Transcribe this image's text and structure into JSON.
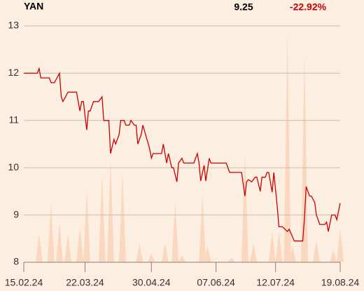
{
  "header": {
    "symbol": "YAN",
    "price": 9.25,
    "change": "-22.92%"
  },
  "chart_data": {
    "type": "line",
    "x": [
      "15.02.24",
      "23.02.24",
      "24.02.24",
      "25.02.24",
      "01.03.24",
      "02.03.24",
      "04.03.24",
      "07.03.24",
      "08.03.24",
      "09.03.24",
      "12.03.24",
      "17.03.24",
      "19.03.24",
      "20.03.24",
      "21.03.24",
      "23.03.24",
      "24.03.24",
      "25.03.24",
      "27.03.24",
      "30.03.24",
      "01.04.24",
      "02.04.24",
      "05.04.24",
      "06.04.24",
      "08.04.24",
      "09.04.24",
      "11.04.24",
      "12.04.24",
      "14.04.24",
      "15.04.24",
      "17.04.24",
      "18.04.24",
      "20.04.24",
      "21.04.24",
      "22.04.24",
      "24.04.24",
      "25.04.24",
      "27.04.24",
      "29.04.24",
      "30.04.24",
      "01.05.24",
      "06.05.24",
      "07.05.24",
      "09.05.24",
      "10.05.24",
      "12.05.24",
      "13.05.24",
      "15.05.24",
      "16.05.24",
      "18.05.24",
      "19.05.24",
      "25.05.24",
      "27.05.24",
      "28.05.24",
      "29.05.24",
      "31.05.24",
      "01.06.24",
      "03.06.24",
      "04.06.24",
      "13.06.24",
      "15.06.24",
      "22.06.24",
      "24.06.24",
      "25.06.24",
      "26.06.24",
      "28.06.24",
      "30.06.24",
      "01.07.24",
      "03.07.24",
      "04.07.24",
      "06.07.24",
      "07.07.24",
      "08.07.24",
      "10.07.24",
      "11.07.24",
      "13.07.24",
      "14.07.24",
      "16.07.24",
      "19.07.24",
      "20.07.24",
      "23.07.24",
      "28.07.24",
      "29.07.24",
      "30.07.24",
      "01.08.24",
      "02.08.24",
      "04.08.24",
      "05.08.24",
      "07.08.24",
      "10.08.24",
      "11.08.24",
      "12.08.24",
      "14.08.24",
      "16.08.24",
      "17.08.24",
      "19.08.24"
    ],
    "series": [
      {
        "name": "YAN",
        "color": "#cc0000",
        "values": [
          12.0,
          12.0,
          12.1,
          11.9,
          11.9,
          11.8,
          11.8,
          12.0,
          11.5,
          11.4,
          11.6,
          11.6,
          11.2,
          11.4,
          11.4,
          10.8,
          11.2,
          11.2,
          11.4,
          11.4,
          11.5,
          11.0,
          11.0,
          10.3,
          10.6,
          10.5,
          10.7,
          11.0,
          11.0,
          10.9,
          10.9,
          11.0,
          10.9,
          10.9,
          10.5,
          10.7,
          10.9,
          10.65,
          10.4,
          10.2,
          10.3,
          10.3,
          10.5,
          10.1,
          10.3,
          10.0,
          10.0,
          9.7,
          10.1,
          10.2,
          10.1,
          10.1,
          10.3,
          10.1,
          9.72,
          10.05,
          9.72,
          10.2,
          10.1,
          10.1,
          9.9,
          9.9,
          9.4,
          9.7,
          9.75,
          9.7,
          9.8,
          9.8,
          9.5,
          9.8,
          9.8,
          9.9,
          9.9,
          9.48,
          9.9,
          9.17,
          8.75,
          8.75,
          8.65,
          8.7,
          8.45,
          8.45,
          8.95,
          9.6,
          9.4,
          9.4,
          9.27,
          9.0,
          8.8,
          8.8,
          8.85,
          8.65,
          9.0,
          9.0,
          8.9,
          9.25
        ]
      }
    ],
    "volume": {
      "color": "#f9d8bf",
      "x": [
        "24.02.24",
        "02.03.24",
        "07.03.24",
        "12.03.24",
        "19.03.24",
        "23.03.24",
        "01.04.24",
        "06.04.24",
        "13.04.24",
        "23.04.24",
        "30.04.24",
        "08.05.24",
        "14.05.24",
        "18.05.24",
        "30.05.24",
        "02.06.24",
        "16.06.24",
        "24.06.24",
        "29.06.24",
        "10.07.24",
        "14.07.24",
        "19.07.24",
        "22.07.24",
        "29.07.24",
        "05.08.24",
        "15.08.24",
        "19.08.24"
      ],
      "values": [
        12,
        25,
        17,
        12,
        15,
        30,
        37,
        43,
        38,
        8,
        4,
        8,
        25,
        3,
        29,
        7,
        2,
        46,
        8,
        13,
        13,
        97,
        7,
        88,
        9,
        5,
        14
      ]
    },
    "xlim": [
      "15.02.24",
      "19.08.24"
    ],
    "xticks": [
      "15.02.24",
      "22.03.24",
      "30.04.24",
      "07.06.24",
      "12.07.24",
      "19.08.24"
    ],
    "ylim": [
      8,
      13
    ],
    "yticks": [
      8,
      9,
      10,
      11,
      12,
      13
    ],
    "y2lim": [
      0,
      100
    ],
    "grid": true
  }
}
